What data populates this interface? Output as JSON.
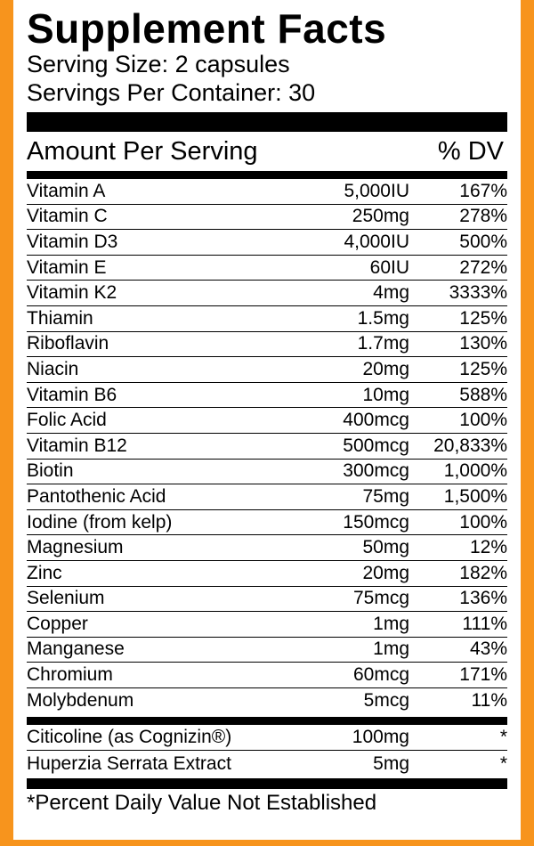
{
  "title": "Supplement Facts",
  "serving_size": "Serving Size: 2 capsules",
  "servings_per_container": "Servings Per Container: 30",
  "amount_header": "Amount Per Serving",
  "dv_header": "% DV",
  "nutrients": [
    {
      "name": "Vitamin A",
      "amount": "5,000IU",
      "dv": "167%"
    },
    {
      "name": "Vitamin C",
      "amount": "250mg",
      "dv": "278%"
    },
    {
      "name": "Vitamin D3",
      "amount": "4,000IU",
      "dv": "500%"
    },
    {
      "name": "Vitamin E",
      "amount": "60IU",
      "dv": "272%"
    },
    {
      "name": "Vitamin K2",
      "amount": "4mg",
      "dv": "3333%"
    },
    {
      "name": "Thiamin",
      "amount": "1.5mg",
      "dv": "125%"
    },
    {
      "name": "Riboflavin",
      "amount": "1.7mg",
      "dv": "130%"
    },
    {
      "name": "Niacin",
      "amount": "20mg",
      "dv": "125%"
    },
    {
      "name": "Vitamin B6",
      "amount": "10mg",
      "dv": "588%"
    },
    {
      "name": "Folic Acid",
      "amount": "400mcg",
      "dv": "100%"
    },
    {
      "name": "Vitamin B12",
      "amount": "500mcg",
      "dv": "20,833%"
    },
    {
      "name": "Biotin",
      "amount": "300mcg",
      "dv": "1,000%"
    },
    {
      "name": "Pantothenic Acid",
      "amount": "75mg",
      "dv": "1,500%"
    },
    {
      "name": "Iodine (from kelp)",
      "amount": "150mcg",
      "dv": "100%"
    },
    {
      "name": "Magnesium",
      "amount": "50mg",
      "dv": "12%"
    },
    {
      "name": "Zinc",
      "amount": "20mg",
      "dv": "182%"
    },
    {
      "name": "Selenium",
      "amount": "75mcg",
      "dv": "136%"
    },
    {
      "name": "Copper",
      "amount": "1mg",
      "dv": "111%"
    },
    {
      "name": "Manganese",
      "amount": "1mg",
      "dv": "43%"
    },
    {
      "name": "Chromium",
      "amount": "60mcg",
      "dv": "171%"
    },
    {
      "name": "Molybdenum",
      "amount": "5mcg",
      "dv": "11%"
    }
  ],
  "other_ingredients": [
    {
      "name": "Citicoline (as Cognizin®)",
      "amount": "100mg",
      "dv": "*"
    },
    {
      "name": "Huperzia Serrata Extract",
      "amount": "5mg",
      "dv": "*"
    }
  ],
  "footnote": "*Percent Daily Value Not Established",
  "colors": {
    "border": "#f7941d",
    "background": "#ffffff",
    "text": "#000000"
  }
}
